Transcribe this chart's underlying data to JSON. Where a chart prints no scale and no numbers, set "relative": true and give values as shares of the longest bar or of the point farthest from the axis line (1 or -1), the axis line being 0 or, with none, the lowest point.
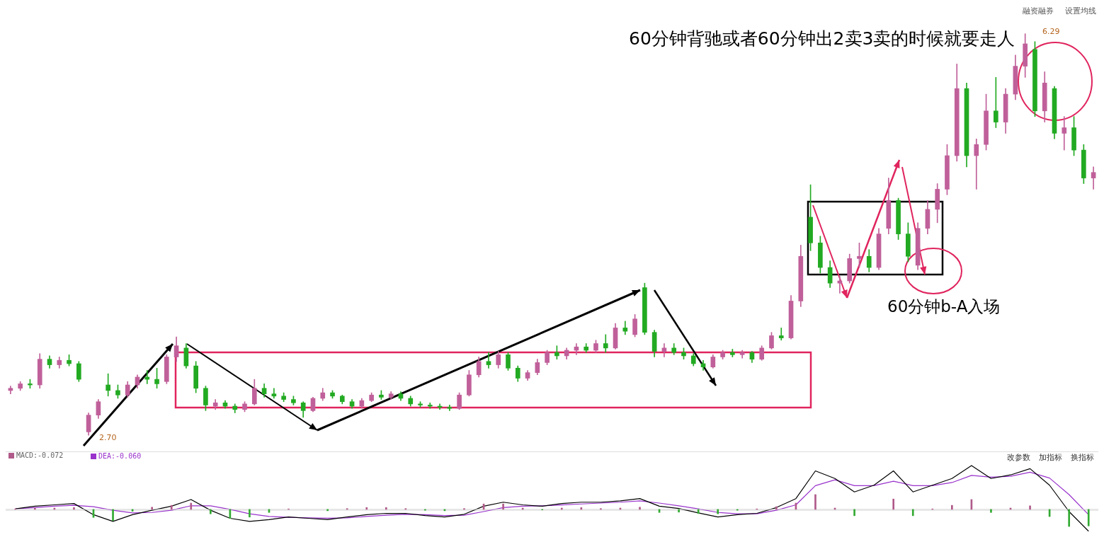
{
  "chart_data": [
    {
      "type": "candlestick",
      "categories": [
        null,
        null,
        null,
        null,
        null,
        null,
        null,
        null,
        null,
        null,
        null,
        null,
        null,
        null,
        null,
        null,
        null,
        null,
        null,
        null,
        null,
        null,
        null,
        null,
        null,
        null,
        null,
        null,
        null,
        null,
        null,
        null,
        null,
        null,
        null,
        null,
        null,
        null,
        null,
        null,
        null,
        null,
        null,
        null,
        null,
        null,
        null,
        null,
        null,
        null,
        null,
        null,
        null,
        null,
        null,
        null,
        null,
        null,
        null,
        null,
        null,
        null,
        null,
        null,
        null,
        null,
        null,
        null,
        null,
        null,
        null,
        null,
        null,
        null,
        null,
        null,
        null,
        null,
        null,
        null,
        null,
        null,
        null,
        null,
        null,
        null,
        null,
        null,
        null,
        null,
        null,
        null,
        null,
        null,
        null,
        null,
        null,
        null,
        null,
        null,
        null,
        null,
        null,
        null,
        null,
        null,
        null,
        null,
        null,
        null,
        null,
        null
      ],
      "ohlc": [
        [
          3.1,
          3.14,
          3.07,
          3.12
        ],
        [
          3.12,
          3.18,
          3.1,
          3.16
        ],
        [
          3.16,
          3.2,
          3.12,
          3.15
        ],
        [
          3.15,
          3.43,
          3.12,
          3.38
        ],
        [
          3.38,
          3.41,
          3.3,
          3.33
        ],
        [
          3.33,
          3.4,
          3.3,
          3.37
        ],
        [
          3.37,
          3.42,
          3.32,
          3.34
        ],
        [
          3.34,
          3.36,
          3.18,
          3.2
        ],
        [
          2.73,
          2.9,
          2.7,
          2.88
        ],
        [
          2.88,
          3.02,
          2.85,
          3.0
        ],
        [
          3.15,
          3.25,
          3.05,
          3.1
        ],
        [
          3.1,
          3.15,
          3.03,
          3.06
        ],
        [
          3.06,
          3.18,
          3.04,
          3.15
        ],
        [
          3.15,
          3.24,
          3.12,
          3.22
        ],
        [
          3.22,
          3.28,
          3.16,
          3.2
        ],
        [
          3.2,
          3.3,
          3.12,
          3.16
        ],
        [
          3.18,
          3.42,
          3.16,
          3.4
        ],
        [
          3.4,
          3.58,
          3.36,
          3.5
        ],
        [
          3.48,
          3.52,
          3.3,
          3.32
        ],
        [
          3.32,
          3.36,
          3.08,
          3.12
        ],
        [
          3.12,
          3.14,
          2.92,
          2.97
        ],
        [
          2.96,
          3.02,
          2.93,
          2.99
        ],
        [
          2.99,
          3.01,
          2.94,
          2.96
        ],
        [
          2.96,
          2.98,
          2.9,
          2.93
        ],
        [
          2.93,
          3.0,
          2.91,
          2.98
        ],
        [
          2.98,
          3.2,
          2.97,
          3.12
        ],
        [
          3.12,
          3.16,
          3.04,
          3.07
        ],
        [
          3.07,
          3.12,
          3.03,
          3.05
        ],
        [
          3.05,
          3.08,
          3.0,
          3.02
        ],
        [
          3.02,
          3.05,
          2.97,
          2.99
        ],
        [
          2.99,
          3.0,
          2.86,
          2.92
        ],
        [
          2.92,
          3.04,
          2.91,
          3.03
        ],
        [
          3.03,
          3.12,
          3.01,
          3.08
        ],
        [
          3.08,
          3.1,
          3.03,
          3.05
        ],
        [
          3.05,
          3.06,
          2.98,
          3.0
        ],
        [
          3.0,
          3.02,
          2.94,
          2.96
        ],
        [
          2.96,
          3.03,
          2.94,
          3.01
        ],
        [
          3.01,
          3.08,
          3.0,
          3.06
        ],
        [
          3.06,
          3.1,
          3.02,
          3.04
        ],
        [
          3.04,
          3.09,
          3.02,
          3.07
        ],
        [
          3.07,
          3.09,
          3.01,
          3.03
        ],
        [
          3.03,
          3.05,
          2.96,
          2.98
        ],
        [
          2.98,
          3.0,
          2.95,
          2.97
        ],
        [
          2.97,
          2.99,
          2.94,
          2.96
        ],
        [
          2.96,
          2.98,
          2.93,
          2.95
        ],
        [
          2.95,
          2.97,
          2.92,
          2.94
        ],
        [
          2.94,
          3.08,
          2.93,
          3.06
        ],
        [
          3.06,
          3.28,
          3.05,
          3.24
        ],
        [
          3.24,
          3.4,
          3.22,
          3.36
        ],
        [
          3.36,
          3.44,
          3.3,
          3.33
        ],
        [
          3.33,
          3.45,
          3.3,
          3.42
        ],
        [
          3.42,
          3.44,
          3.28,
          3.3
        ],
        [
          3.3,
          3.32,
          3.18,
          3.21
        ],
        [
          3.21,
          3.28,
          3.19,
          3.26
        ],
        [
          3.26,
          3.38,
          3.24,
          3.35
        ],
        [
          3.35,
          3.46,
          3.33,
          3.44
        ],
        [
          3.44,
          3.5,
          3.38,
          3.41
        ],
        [
          3.41,
          3.48,
          3.38,
          3.46
        ],
        [
          3.46,
          3.52,
          3.42,
          3.49
        ],
        [
          3.49,
          3.52,
          3.44,
          3.46
        ],
        [
          3.46,
          3.55,
          3.44,
          3.52
        ],
        [
          3.52,
          3.6,
          3.44,
          3.48
        ],
        [
          3.48,
          3.7,
          3.47,
          3.66
        ],
        [
          3.66,
          3.72,
          3.6,
          3.63
        ],
        [
          3.6,
          3.78,
          3.58,
          3.74
        ],
        [
          4.02,
          4.06,
          3.6,
          3.62
        ],
        [
          3.62,
          3.64,
          3.4,
          3.45
        ],
        [
          3.45,
          3.52,
          3.4,
          3.48
        ],
        [
          3.48,
          3.52,
          3.42,
          3.44
        ],
        [
          3.44,
          3.48,
          3.38,
          3.41
        ],
        [
          3.41,
          3.43,
          3.32,
          3.34
        ],
        [
          3.34,
          3.37,
          3.28,
          3.31
        ],
        [
          3.31,
          3.42,
          3.3,
          3.4
        ],
        [
          3.4,
          3.46,
          3.38,
          3.44
        ],
        [
          3.44,
          3.47,
          3.4,
          3.42
        ],
        [
          3.42,
          3.46,
          3.39,
          3.44
        ],
        [
          3.44,
          3.45,
          3.35,
          3.38
        ],
        [
          3.38,
          3.5,
          3.37,
          3.48
        ],
        [
          3.48,
          3.62,
          3.47,
          3.59
        ],
        [
          3.59,
          3.66,
          3.55,
          3.57
        ],
        [
          3.57,
          3.95,
          3.56,
          3.9
        ],
        [
          3.9,
          4.4,
          3.85,
          4.3
        ],
        [
          4.65,
          4.94,
          4.35,
          4.42
        ],
        [
          4.42,
          4.48,
          4.15,
          4.2
        ],
        [
          4.2,
          4.26,
          4.02,
          4.06
        ],
        [
          4.06,
          4.12,
          3.97,
          4.08
        ],
        [
          4.08,
          4.32,
          4.06,
          4.28
        ],
        [
          4.28,
          4.42,
          4.2,
          4.3
        ],
        [
          4.3,
          4.36,
          4.16,
          4.2
        ],
        [
          4.2,
          4.55,
          4.18,
          4.5
        ],
        [
          4.55,
          5.0,
          4.5,
          4.8
        ],
        [
          4.8,
          4.82,
          4.45,
          4.5
        ],
        [
          4.5,
          4.6,
          4.25,
          4.3
        ],
        [
          4.22,
          4.6,
          4.18,
          4.55
        ],
        [
          4.55,
          4.8,
          4.5,
          4.72
        ],
        [
          4.72,
          4.95,
          4.6,
          4.9
        ],
        [
          4.9,
          5.3,
          4.85,
          5.2
        ],
        [
          5.2,
          6.02,
          5.15,
          5.8
        ],
        [
          5.8,
          5.85,
          5.1,
          5.2
        ],
        [
          5.2,
          5.35,
          4.9,
          5.3
        ],
        [
          5.3,
          5.75,
          5.25,
          5.6
        ],
        [
          5.6,
          5.9,
          5.45,
          5.5
        ],
        [
          5.5,
          5.8,
          5.4,
          5.75
        ],
        [
          5.75,
          6.1,
          5.7,
          6.0
        ],
        [
          6.0,
          6.29,
          5.9,
          6.2
        ],
        [
          6.15,
          6.22,
          5.55,
          5.6
        ],
        [
          5.6,
          5.95,
          5.5,
          5.85
        ],
        [
          5.8,
          5.82,
          5.35,
          5.4
        ],
        [
          5.4,
          5.55,
          5.25,
          5.45
        ],
        [
          5.45,
          5.55,
          5.2,
          5.25
        ],
        [
          5.25,
          5.3,
          4.95,
          5.0
        ],
        [
          5.0,
          5.1,
          4.9,
          5.05
        ]
      ],
      "colors": [
        "#c0609a",
        "#c0609a",
        "#22aa22",
        "#c0609a",
        "#22aa22",
        "#c0609a",
        "#22aa22",
        "#22aa22",
        "#c0609a",
        "#c0609a",
        "#22aa22",
        "#22aa22",
        "#c0609a",
        "#c0609a",
        "#22aa22",
        "#22aa22",
        "#c0609a",
        "#c0609a",
        "#22aa22",
        "#22aa22",
        "#22aa22",
        "#c0609a",
        "#22aa22",
        "#22aa22",
        "#c0609a",
        "#c0609a",
        "#22aa22",
        "#22aa22",
        "#22aa22",
        "#22aa22",
        "#22aa22",
        "#c0609a",
        "#c0609a",
        "#22aa22",
        "#22aa22",
        "#22aa22",
        "#c0609a",
        "#c0609a",
        "#22aa22",
        "#c0609a",
        "#22aa22",
        "#22aa22",
        "#22aa22",
        "#22aa22",
        "#22aa22",
        "#22aa22",
        "#c0609a",
        "#c0609a",
        "#c0609a",
        "#22aa22",
        "#c0609a",
        "#22aa22",
        "#22aa22",
        "#c0609a",
        "#c0609a",
        "#c0609a",
        "#22aa22",
        "#c0609a",
        "#c0609a",
        "#22aa22",
        "#c0609a",
        "#22aa22",
        "#c0609a",
        "#22aa22",
        "#c0609a",
        "#22aa22",
        "#22aa22",
        "#c0609a",
        "#22aa22",
        "#22aa22",
        "#22aa22",
        "#22aa22",
        "#c0609a",
        "#c0609a",
        "#22aa22",
        "#c0609a",
        "#22aa22",
        "#c0609a",
        "#c0609a",
        "#22aa22",
        "#c0609a",
        "#c0609a",
        "#22aa22",
        "#22aa22",
        "#22aa22",
        "#c0609a",
        "#c0609a",
        "#c0609a",
        "#22aa22",
        "#c0609a",
        "#c0609a",
        "#22aa22",
        "#22aa22",
        "#c0609a",
        "#c0609a",
        "#c0609a",
        "#c0609a",
        "#c0609a",
        "#22aa22",
        "#c0609a",
        "#c0609a",
        "#22aa22",
        "#c0609a",
        "#c0609a",
        "#c0609a",
        "#22aa22",
        "#c0609a",
        "#22aa22",
        "#c0609a",
        "#22aa22",
        "#22aa22",
        "#c0609a"
      ],
      "annotations": [
        "60分钟背驰或者60分钟出2卖3卖的时候就要走人",
        "60分钟b-A入场",
        "2.70",
        "6.29",
        "融资融券",
        "设置均线"
      ]
    },
    {
      "type": "line",
      "relative": true,
      "legend": "top left",
      "categories": [
        null,
        null,
        null,
        null,
        null,
        null,
        null,
        null,
        null,
        null,
        null,
        null,
        null,
        null,
        null,
        null,
        null,
        null,
        null,
        null,
        null,
        null,
        null,
        null,
        null,
        null,
        null,
        null,
        null,
        null,
        null,
        null,
        null,
        null,
        null,
        null,
        null,
        null,
        null,
        null,
        null,
        null,
        null,
        null,
        null,
        null,
        null,
        null,
        null,
        null,
        null,
        null,
        null,
        null,
        null,
        null
      ],
      "series": [
        {
          "color": "#000000",
          "values": [
            0.03,
            0.09,
            0.12,
            0.15,
            -0.1,
            -0.25,
            -0.1,
            0,
            0.09,
            0.24,
            0,
            -0.18,
            -0.25,
            -0.21,
            -0.15,
            -0.18,
            -0.21,
            -0.15,
            -0.1,
            -0.07,
            -0.07,
            -0.12,
            -0.15,
            -0.09,
            0.09,
            0.18,
            0.12,
            0.09,
            0.15,
            0.18,
            0.18,
            0.21,
            0.26,
            0.09,
            0.04,
            -0.06,
            -0.15,
            -0.1,
            -0.07,
            0.06,
            0.26,
            0.88,
            0.71,
            0.41,
            0.56,
            0.88,
            0.41,
            0.56,
            0.71,
            1.0,
            0.71,
            0.79,
            0.93,
            0.56,
            -0.03,
            -0.47
          ]
        },
        {
          "name": "DEA:-0.060",
          "color": "#9933cc",
          "values": [
            0.03,
            0.06,
            0.09,
            0.11,
            0.08,
            0,
            -0.06,
            -0.05,
            0,
            0.1,
            0.1,
            0.02,
            -0.08,
            -0.14,
            -0.16,
            -0.17,
            -0.18,
            -0.17,
            -0.14,
            -0.11,
            -0.09,
            -0.1,
            -0.12,
            -0.11,
            -0.03,
            0.06,
            0.09,
            0.1,
            0.12,
            0.14,
            0.16,
            0.18,
            0.21,
            0.16,
            0.1,
            0.03,
            -0.05,
            -0.08,
            -0.08,
            0,
            0.12,
            0.55,
            0.68,
            0.55,
            0.55,
            0.65,
            0.55,
            0.55,
            0.62,
            0.78,
            0.74,
            0.76,
            0.85,
            0.72,
            0.35,
            -0.1
          ]
        }
      ],
      "annotations": [
        "改参数",
        "加指标",
        "换指标"
      ]
    },
    {
      "type": "bar",
      "relative": true,
      "legend": "top left",
      "categories": [
        null,
        null,
        null,
        null,
        null,
        null,
        null,
        null,
        null,
        null,
        null,
        null,
        null,
        null,
        null,
        null,
        null,
        null,
        null,
        null,
        null,
        null,
        null,
        null,
        null,
        null,
        null,
        null,
        null,
        null,
        null,
        null,
        null,
        null,
        null,
        null,
        null,
        null,
        null,
        null,
        null,
        null,
        null,
        null,
        null,
        null,
        null,
        null,
        null,
        null,
        null,
        null,
        null,
        null,
        null,
        null
      ],
      "series": [
        {
          "name": "MACD:-0.072",
          "values": [
            0.03,
            0.08,
            0.08,
            0.11,
            -0.47,
            -0.66,
            -0.11,
            0.13,
            0.24,
            0.37,
            -0.26,
            -0.53,
            -0.45,
            -0.18,
            0.03,
            null,
            -0.08,
            0.05,
            0.11,
            0.11,
            0.05,
            -0.05,
            -0.08,
            0.05,
            0.32,
            0.32,
            0.08,
            -0.03,
            0.08,
            0.11,
            0.05,
            0.08,
            0.13,
            -0.18,
            -0.16,
            -0.24,
            -0.26,
            -0.05,
            0.03,
            0.16,
            0.37,
            0.87,
            0.08,
            -0.37,
            null,
            0.61,
            -0.37,
            0.03,
            0.24,
            0.58,
            -0.18,
            0.08,
            0.21,
            -0.42,
            -1,
            -0.97
          ],
          "colors": [
            "#b05a8a",
            "#b05a8a",
            "#b05a8a",
            "#b05a8a",
            "#33aa33",
            "#33aa33",
            "#33aa33",
            "#b05a8a",
            "#b05a8a",
            "#b05a8a",
            "#33aa33",
            "#33aa33",
            "#33aa33",
            "#33aa33",
            "#b05a8a",
            "#33aa33",
            "#33aa33",
            "#b05a8a",
            "#b05a8a",
            "#b05a8a",
            "#b05a8a",
            "#33aa33",
            "#33aa33",
            "#b05a8a",
            "#b05a8a",
            "#b05a8a",
            "#b05a8a",
            "#33aa33",
            "#b05a8a",
            "#b05a8a",
            "#b05a8a",
            "#b05a8a",
            "#b05a8a",
            "#33aa33",
            "#33aa33",
            "#33aa33",
            "#33aa33",
            "#33aa33",
            "#b05a8a",
            "#b05a8a",
            "#b05a8a",
            "#b05a8a",
            "#b05a8a",
            "#33aa33",
            "#b05a8a",
            "#b05a8a",
            "#33aa33",
            "#b05a8a",
            "#b05a8a",
            "#b05a8a",
            "#33aa33",
            "#b05a8a",
            "#b05a8a",
            "#33aa33",
            "#33aa33",
            "#33aa33"
          ]
        }
      ]
    }
  ]
}
